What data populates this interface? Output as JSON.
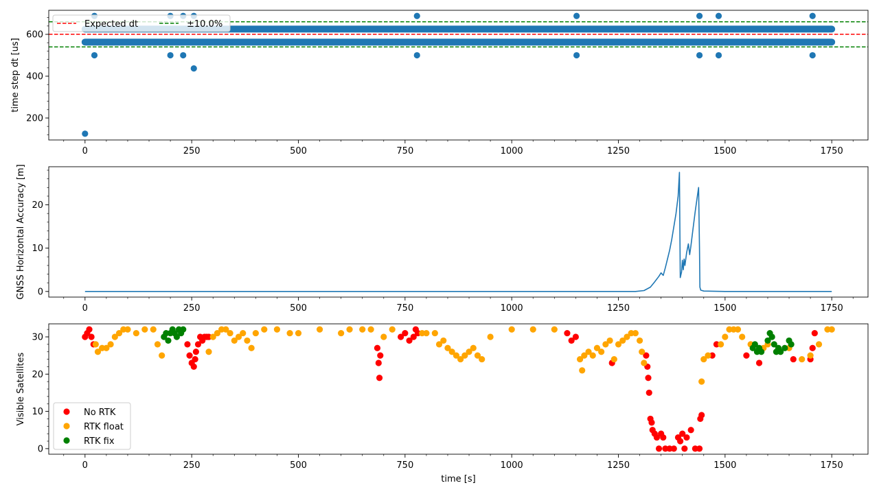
{
  "chart_data": [
    {
      "type": "scatter",
      "ylabel": "time step dt [us]",
      "xlim": [
        -85,
        1835
      ],
      "ylim": [
        95,
        715
      ],
      "xticks": [
        0,
        250,
        500,
        750,
        1000,
        1250,
        1500,
        1750
      ],
      "xtick_labels": [
        "0",
        "250",
        "500",
        "750",
        "1000",
        "1250",
        "1500",
        "1750"
      ],
      "yticks": [
        200,
        400,
        600
      ],
      "ytick_labels": [
        "200",
        "400",
        "600"
      ],
      "expected_dt": 600,
      "tolerance_low": 540,
      "tolerance_high": 660,
      "legend": {
        "placement": "upper-left",
        "entries": [
          {
            "label": "Expected dt",
            "color": "#ff0000",
            "style": "dashed"
          },
          {
            "label": "±10.0%",
            "color": "#008000",
            "style": "dashed"
          }
        ]
      },
      "dense_band_low": {
        "y": 563,
        "x_start": 0,
        "x_end": 1750
      },
      "dense_band_high": {
        "y": 625,
        "x_start": 0,
        "x_end": 1750
      },
      "points": [
        {
          "x": 0,
          "y": 125
        },
        {
          "x": 22,
          "y": 500
        },
        {
          "x": 22,
          "y": 688
        },
        {
          "x": 200,
          "y": 500
        },
        {
          "x": 200,
          "y": 688
        },
        {
          "x": 230,
          "y": 500
        },
        {
          "x": 230,
          "y": 688
        },
        {
          "x": 255,
          "y": 437
        },
        {
          "x": 255,
          "y": 688
        },
        {
          "x": 778,
          "y": 500
        },
        {
          "x": 778,
          "y": 688
        },
        {
          "x": 1152,
          "y": 500
        },
        {
          "x": 1152,
          "y": 688
        },
        {
          "x": 1440,
          "y": 500
        },
        {
          "x": 1440,
          "y": 688
        },
        {
          "x": 1485,
          "y": 500
        },
        {
          "x": 1485,
          "y": 688
        },
        {
          "x": 1705,
          "y": 500
        },
        {
          "x": 1705,
          "y": 688
        }
      ],
      "color": "#1f77b4"
    },
    {
      "type": "line",
      "ylabel": "GNSS Horizontal Accuracy [m]",
      "xlim": [
        -85,
        1835
      ],
      "ylim": [
        -1.3,
        28.8
      ],
      "xticks": [
        0,
        250,
        500,
        750,
        1000,
        1250,
        1500,
        1750
      ],
      "xtick_labels": [
        "0",
        "250",
        "500",
        "750",
        "1000",
        "1250",
        "1500",
        "1750"
      ],
      "yticks": [
        0,
        10,
        20
      ],
      "ytick_labels": [
        "0",
        "10",
        "20"
      ],
      "color": "#1f77b4",
      "x": [
        0,
        1290,
        1310,
        1325,
        1335,
        1345,
        1350,
        1355,
        1360,
        1365,
        1370,
        1375,
        1380,
        1385,
        1390,
        1393,
        1394,
        1395,
        1398,
        1400,
        1402,
        1404,
        1406,
        1410,
        1414,
        1417,
        1420,
        1425,
        1430,
        1435,
        1438,
        1440,
        1441,
        1443,
        1450,
        1500,
        1750
      ],
      "y": [
        0,
        0,
        0.2,
        1.0,
        2.2,
        3.5,
        4.3,
        3.7,
        5.5,
        7.5,
        9.5,
        12.0,
        15.0,
        18.0,
        22.0,
        27.5,
        15.0,
        3.2,
        4.5,
        7.2,
        5.0,
        7.5,
        6.0,
        9.0,
        11.0,
        8.5,
        10.5,
        14.5,
        18.5,
        22.0,
        24.0,
        10.0,
        1.0,
        0.3,
        0.1,
        0.0,
        0.0
      ]
    },
    {
      "type": "scatter",
      "xlabel": "time [s]",
      "ylabel": "Visible Satellites",
      "xlim": [
        -85,
        1835
      ],
      "ylim": [
        -1.5,
        33.5
      ],
      "xticks": [
        0,
        250,
        500,
        750,
        1000,
        1250,
        1500,
        1750
      ],
      "xtick_labels": [
        "0",
        "250",
        "500",
        "750",
        "1000",
        "1250",
        "1500",
        "1750"
      ],
      "yticks": [
        0,
        10,
        20,
        30
      ],
      "ytick_labels": [
        "0",
        "10",
        "20",
        "30"
      ],
      "legend": {
        "placement": "lower-left",
        "entries": [
          {
            "label": "No RTK",
            "color": "#ff0000"
          },
          {
            "label": "RTK float",
            "color": "#ffa500"
          },
          {
            "label": "RTK fix",
            "color": "#008000"
          }
        ]
      },
      "series": [
        {
          "name": "No RTK",
          "color": "#ff0000",
          "x": [
            0,
            5,
            10,
            15,
            20,
            240,
            245,
            250,
            255,
            258,
            260,
            265,
            270,
            275,
            280,
            285,
            290,
            685,
            688,
            690,
            692,
            740,
            750,
            760,
            770,
            775,
            780,
            1130,
            1140,
            1150,
            1235,
            1315,
            1318,
            1320,
            1322,
            1325,
            1328,
            1330,
            1335,
            1340,
            1345,
            1350,
            1355,
            1360,
            1370,
            1380,
            1390,
            1395,
            1400,
            1405,
            1410,
            1420,
            1430,
            1440,
            1442,
            1445,
            1470,
            1480,
            1550,
            1580,
            1660,
            1700,
            1705,
            1710
          ],
          "y": [
            30,
            31,
            32,
            30,
            28,
            28,
            25,
            23,
            22,
            24,
            26,
            28,
            30,
            29,
            30,
            30,
            30,
            27,
            23,
            19,
            25,
            30,
            31,
            29,
            30,
            32,
            31,
            31,
            29,
            30,
            23,
            25,
            22,
            19,
            15,
            8,
            7,
            5,
            4,
            3,
            0,
            4,
            3,
            0,
            0,
            0,
            3,
            2,
            4,
            0,
            3,
            5,
            0,
            0,
            8,
            9,
            25,
            28,
            25,
            23,
            24,
            24,
            27,
            31
          ]
        },
        {
          "name": "RTK float",
          "color": "#ffa500",
          "x": [
            25,
            30,
            40,
            50,
            60,
            70,
            80,
            90,
            100,
            120,
            140,
            160,
            170,
            180,
            290,
            300,
            310,
            320,
            330,
            340,
            350,
            360,
            370,
            380,
            390,
            400,
            420,
            450,
            480,
            500,
            550,
            600,
            620,
            650,
            670,
            700,
            720,
            790,
            800,
            820,
            830,
            840,
            850,
            860,
            870,
            880,
            890,
            900,
            910,
            920,
            930,
            950,
            1000,
            1050,
            1100,
            1160,
            1165,
            1170,
            1180,
            1190,
            1200,
            1210,
            1220,
            1230,
            1240,
            1250,
            1260,
            1270,
            1280,
            1290,
            1300,
            1305,
            1310,
            1445,
            1450,
            1460,
            1490,
            1500,
            1510,
            1520,
            1530,
            1540,
            1560,
            1590,
            1600,
            1650,
            1680,
            1700,
            1720,
            1740,
            1750
          ],
          "y": [
            28,
            26,
            27,
            27,
            28,
            30,
            31,
            32,
            32,
            31,
            32,
            32,
            28,
            25,
            26,
            30,
            31,
            32,
            32,
            31,
            29,
            30,
            31,
            29,
            27,
            31,
            32,
            32,
            31,
            31,
            32,
            31,
            32,
            32,
            32,
            30,
            32,
            31,
            31,
            31,
            28,
            29,
            27,
            26,
            25,
            24,
            25,
            26,
            27,
            25,
            24,
            30,
            32,
            32,
            32,
            24,
            21,
            25,
            26,
            25,
            27,
            26,
            28,
            29,
            24,
            28,
            29,
            30,
            31,
            31,
            29,
            26,
            23,
            18,
            24,
            25,
            28,
            30,
            32,
            32,
            32,
            30,
            28,
            27,
            28,
            27,
            24,
            25,
            28,
            32,
            32
          ]
        },
        {
          "name": "RTK fix",
          "color": "#008000",
          "x": [
            185,
            190,
            195,
            200,
            205,
            210,
            215,
            220,
            225,
            230,
            1565,
            1570,
            1575,
            1580,
            1585,
            1600,
            1605,
            1610,
            1615,
            1620,
            1625,
            1630,
            1640,
            1650,
            1655
          ],
          "y": [
            30,
            31,
            29,
            31,
            32,
            31,
            30,
            32,
            31,
            32,
            27,
            28,
            26,
            27,
            26,
            29,
            31,
            30,
            28,
            26,
            27,
            26,
            27,
            29,
            28
          ]
        }
      ]
    }
  ]
}
